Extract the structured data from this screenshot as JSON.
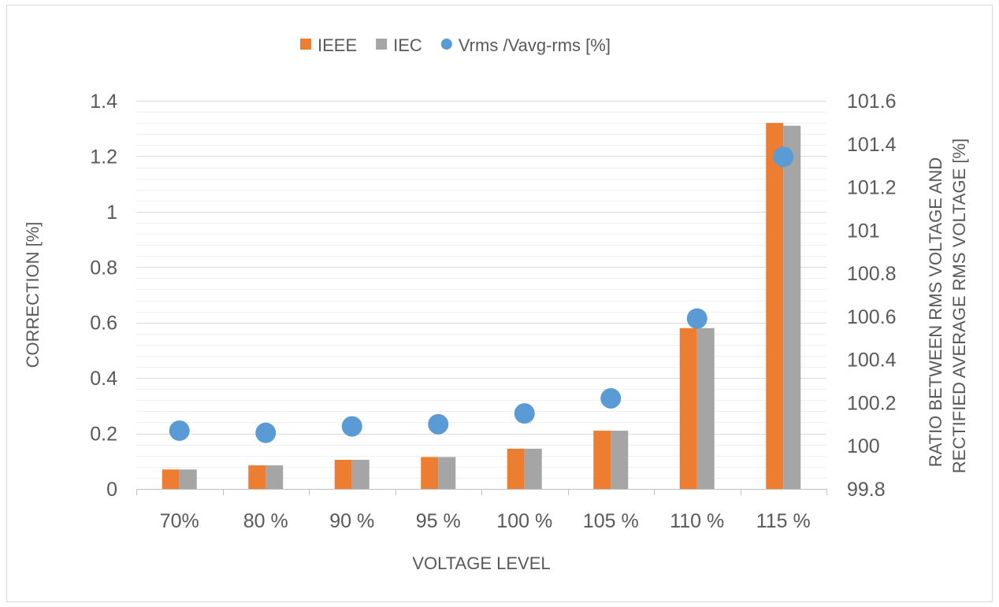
{
  "chart_data": {
    "type": "bar",
    "categories": [
      "70%",
      "80 %",
      "90 %",
      "95 %",
      "100 %",
      "105 %",
      "110 %",
      "115 %"
    ],
    "series": [
      {
        "name": "IEEE",
        "type": "bar",
        "axis": "left",
        "color": "#ED7D31",
        "values": [
          0.07,
          0.085,
          0.105,
          0.115,
          0.145,
          0.21,
          0.58,
          1.32
        ]
      },
      {
        "name": "IEC",
        "type": "bar",
        "axis": "left",
        "color": "#A5A5A5",
        "values": [
          0.07,
          0.085,
          0.105,
          0.115,
          0.145,
          0.21,
          0.58,
          1.31
        ]
      },
      {
        "name": "Vrms /Vavg-rms [%]",
        "type": "scatter",
        "axis": "right",
        "color": "#5B9BD5",
        "values": [
          100.07,
          100.06,
          100.09,
          100.1,
          100.15,
          100.22,
          100.59,
          101.34
        ]
      }
    ],
    "xlabel": "VOLTAGE LEVEL",
    "ylabel": "CORRECTION [%]",
    "ylabel_right_line1": "RATIO BETWEEN RMS VOLTAGE AND",
    "ylabel_right_line2": "RECTIFIED AVERAGE RMS VOLTAGE [%]",
    "ylim": [
      0,
      1.4
    ],
    "yticks": [
      "0",
      "0.2",
      "0.4",
      "0.6",
      "0.8",
      "1",
      "1.2",
      "1.4"
    ],
    "ylim_right": [
      99.8,
      101.6
    ],
    "yticks_right": [
      "99.8",
      "100",
      "100.2",
      "100.4",
      "100.6",
      "100.8",
      "101",
      "101.2",
      "101.4",
      "101.6"
    ],
    "grid": true,
    "legend_position": "top-center"
  }
}
